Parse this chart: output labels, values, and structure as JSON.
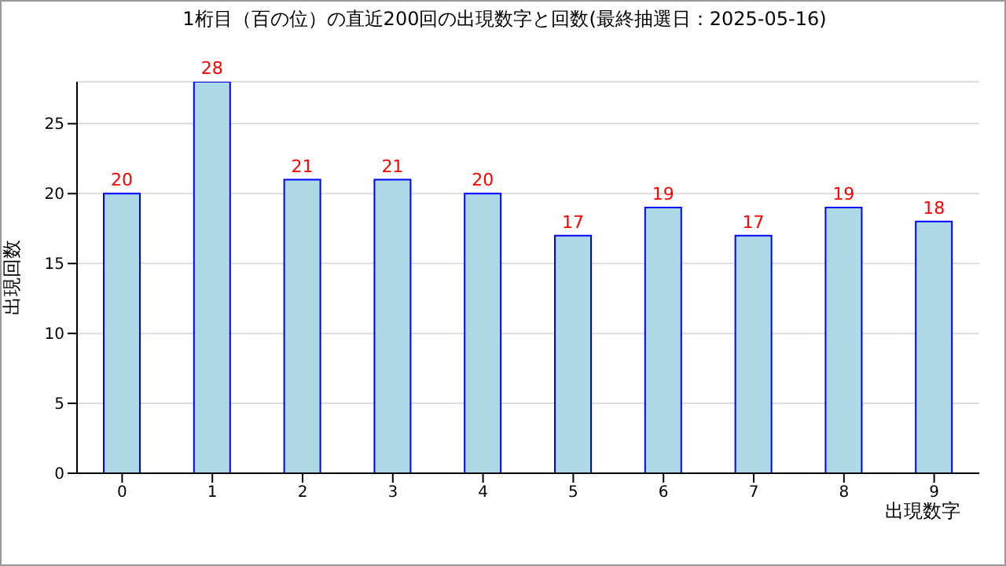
{
  "chart_data": {
    "type": "bar",
    "title": "1桁目（百の位）の直近200回の出現数字と回数(最終抽選日：2025-05-16)",
    "categories": [
      "0",
      "1",
      "2",
      "3",
      "4",
      "5",
      "6",
      "7",
      "8",
      "9"
    ],
    "values": [
      20,
      28,
      21,
      21,
      20,
      17,
      19,
      17,
      19,
      18
    ],
    "color": "#add8e6",
    "xlabel": "出現数字",
    "ylabel": "出現回数",
    "ylim": [
      0,
      28
    ],
    "yticks": [
      0,
      5,
      10,
      15,
      20,
      25
    ],
    "grid": "y",
    "data_labels": true,
    "legend": false
  }
}
